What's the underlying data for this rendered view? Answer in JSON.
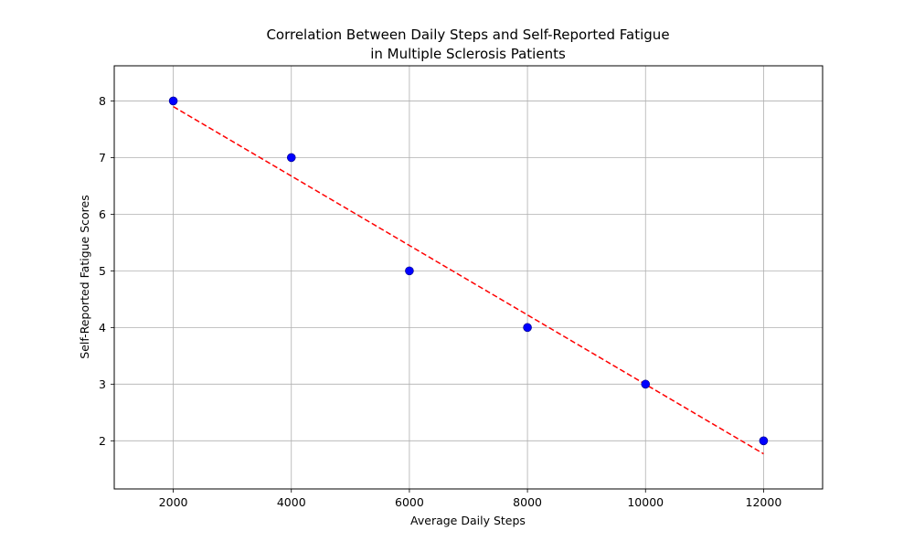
{
  "chart_data": {
    "type": "scatter",
    "title": [
      "Correlation Between Daily Steps and Self-Reported Fatigue",
      "in Multiple Sclerosis Patients"
    ],
    "xlabel": "Average Daily Steps",
    "ylabel": "Self-Reported Fatigue Scores",
    "xlim": [
      1000,
      13000
    ],
    "ylim": [
      1.15,
      8.62
    ],
    "xticks": [
      2000,
      4000,
      6000,
      8000,
      10000,
      12000
    ],
    "yticks": [
      2,
      3,
      4,
      5,
      6,
      7,
      8
    ],
    "grid": true,
    "points": [
      {
        "x": 2000,
        "y": 8
      },
      {
        "x": 4000,
        "y": 7
      },
      {
        "x": 6000,
        "y": 5
      },
      {
        "x": 8000,
        "y": 4
      },
      {
        "x": 10000,
        "y": 3
      },
      {
        "x": 12000,
        "y": 2
      }
    ],
    "trendline": {
      "style": "dashed",
      "from": {
        "x": 2000,
        "y": 7.9
      },
      "to": {
        "x": 12000,
        "y": 1.77
      }
    },
    "colors": {
      "points": "#0000ff",
      "point_edge": "#000080",
      "trendline": "#ff0000",
      "grid": "#b0b0b0",
      "axes": "#000000"
    }
  }
}
